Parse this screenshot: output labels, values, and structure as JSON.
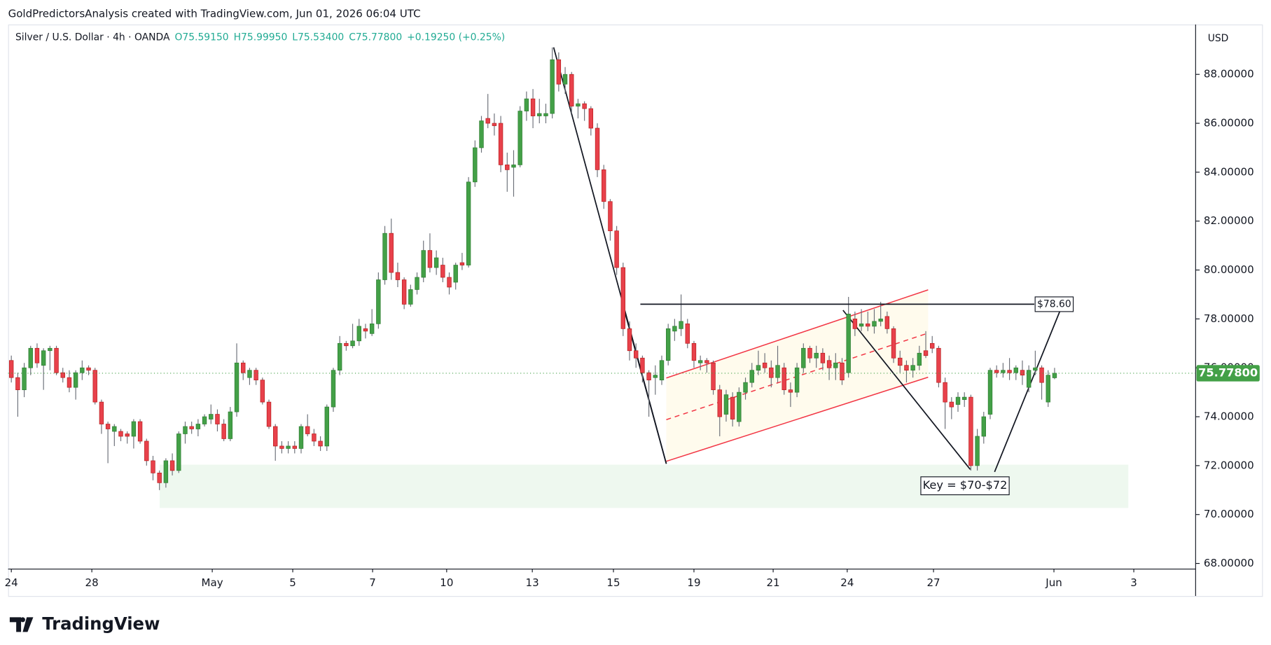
{
  "chart_data": {
    "type": "candlestick",
    "attribution": "GoldPredictorsAnalysis created with TradingView.com, Jun 01, 2026 06:04 UTC",
    "legend_text": [
      "Silver / U.S. Dollar · 4h · OANDA",
      "O75.59150",
      "H75.99950",
      "L75.53400",
      "C75.77800",
      "+0.19250 (+0.25%)"
    ],
    "currency": "USD",
    "brand": "TradingView",
    "up_color": "#43a047",
    "down_color": "#e8414b",
    "last_price_label": "75.77800",
    "ylim": [
      67.77,
      90.04
    ],
    "xlim": [
      -0.5,
      183.9
    ],
    "yticks": [
      {
        "value": 68,
        "label": "68.00000"
      },
      {
        "value": 70,
        "label": "70.00000"
      },
      {
        "value": 72,
        "label": "72.00000"
      },
      {
        "value": 74,
        "label": "74.00000"
      },
      {
        "value": 76,
        "label": "76.00000"
      },
      {
        "value": 78,
        "label": "78.00000"
      },
      {
        "value": 80,
        "label": "80.00000"
      },
      {
        "value": 82,
        "label": "82.00000"
      },
      {
        "value": 84,
        "label": "84.00000"
      },
      {
        "value": 86,
        "label": "86.00000"
      },
      {
        "value": 88,
        "label": "88.00000"
      }
    ],
    "xticks": [
      {
        "value": 0,
        "label": "24"
      },
      {
        "value": 12.5,
        "label": "28"
      },
      {
        "value": 31.2,
        "label": "May"
      },
      {
        "value": 43.7,
        "label": "5"
      },
      {
        "value": 56.1,
        "label": "7"
      },
      {
        "value": 67.6,
        "label": "10"
      },
      {
        "value": 80.9,
        "label": "13"
      },
      {
        "value": 93.5,
        "label": "15"
      },
      {
        "value": 106,
        "label": "19"
      },
      {
        "value": 118.3,
        "label": "21"
      },
      {
        "value": 129.8,
        "label": "24"
      },
      {
        "value": 143.2,
        "label": "27"
      },
      {
        "value": 161.9,
        "label": "Jun"
      },
      {
        "value": 174.3,
        "label": "3"
      }
    ],
    "resistance": {
      "value": 78.6,
      "label": "$78.60"
    },
    "zone": {
      "range": [
        70.27,
        72.04
      ],
      "label": "Key = $70-$72"
    },
    "ohlc": [
      [
        76.3,
        76.5,
        75.4,
        75.6
      ],
      [
        75.6,
        75.8,
        74.0,
        75.1
      ],
      [
        75.1,
        76.2,
        74.8,
        76.0
      ],
      [
        76.0,
        76.9,
        75.7,
        76.8
      ],
      [
        76.8,
        77.0,
        76.0,
        76.2
      ],
      [
        76.1,
        76.8,
        75.1,
        76.7
      ],
      [
        76.7,
        76.9,
        75.9,
        76.8
      ],
      [
        76.8,
        76.9,
        75.7,
        75.8
      ],
      [
        75.8,
        76.0,
        75.4,
        75.6
      ],
      [
        75.6,
        75.9,
        75.0,
        75.2
      ],
      [
        75.2,
        75.9,
        74.7,
        75.8
      ],
      [
        75.8,
        76.3,
        75.5,
        76.0
      ],
      [
        76.0,
        76.1,
        75.7,
        75.9
      ],
      [
        75.9,
        76.0,
        74.5,
        74.6
      ],
      [
        74.6,
        74.7,
        73.3,
        73.7
      ],
      [
        73.7,
        73.8,
        72.1,
        73.5
      ],
      [
        73.4,
        73.7,
        72.8,
        73.6
      ],
      [
        73.4,
        73.5,
        73.0,
        73.2
      ],
      [
        73.3,
        73.4,
        72.9,
        73.2
      ],
      [
        73.2,
        73.9,
        72.7,
        73.8
      ],
      [
        73.8,
        73.9,
        72.9,
        73.0
      ],
      [
        73.0,
        73.1,
        72.0,
        72.2
      ],
      [
        72.2,
        72.4,
        71.4,
        71.7
      ],
      [
        71.7,
        71.8,
        71.0,
        71.3
      ],
      [
        71.3,
        72.3,
        71.1,
        72.2
      ],
      [
        72.2,
        72.5,
        71.6,
        71.8
      ],
      [
        71.8,
        73.4,
        71.7,
        73.3
      ],
      [
        73.3,
        73.8,
        72.9,
        73.6
      ],
      [
        73.6,
        73.8,
        73.3,
        73.5
      ],
      [
        73.5,
        73.9,
        73.2,
        73.7
      ],
      [
        73.7,
        74.1,
        73.6,
        74.0
      ],
      [
        73.9,
        74.5,
        73.7,
        74.1
      ],
      [
        74.1,
        74.3,
        73.4,
        73.7
      ],
      [
        73.7,
        73.9,
        73.0,
        73.1
      ],
      [
        73.1,
        74.4,
        73.0,
        74.2
      ],
      [
        74.2,
        77.0,
        74.0,
        76.2
      ],
      [
        76.2,
        76.3,
        75.5,
        75.8
      ],
      [
        75.6,
        76.0,
        75.3,
        75.9
      ],
      [
        75.9,
        76.0,
        75.3,
        75.5
      ],
      [
        75.5,
        75.6,
        74.5,
        74.6
      ],
      [
        74.6,
        74.7,
        73.5,
        73.6
      ],
      [
        73.6,
        73.7,
        72.2,
        72.8
      ],
      [
        72.8,
        73.0,
        72.5,
        72.7
      ],
      [
        72.7,
        73.0,
        72.5,
        72.8
      ],
      [
        72.8,
        73.0,
        72.5,
        72.7
      ],
      [
        72.7,
        73.7,
        72.5,
        73.6
      ],
      [
        73.6,
        74.1,
        73.2,
        73.3
      ],
      [
        73.3,
        73.5,
        72.8,
        73.0
      ],
      [
        73.0,
        73.2,
        72.6,
        72.8
      ],
      [
        72.8,
        74.5,
        72.6,
        74.4
      ],
      [
        74.4,
        76.0,
        74.2,
        75.9
      ],
      [
        75.9,
        77.3,
        75.7,
        77.0
      ],
      [
        77.0,
        77.1,
        76.7,
        76.9
      ],
      [
        76.9,
        77.8,
        76.8,
        77.1
      ],
      [
        77.1,
        78.0,
        76.9,
        77.7
      ],
      [
        77.6,
        77.8,
        77.2,
        77.5
      ],
      [
        77.4,
        78.4,
        77.3,
        77.8
      ],
      [
        77.8,
        79.9,
        77.6,
        79.6
      ],
      [
        79.6,
        81.8,
        79.4,
        81.5
      ],
      [
        81.5,
        82.1,
        79.6,
        79.9
      ],
      [
        79.9,
        80.3,
        79.3,
        79.6
      ],
      [
        79.6,
        79.7,
        78.4,
        78.6
      ],
      [
        78.6,
        79.4,
        78.5,
        79.2
      ],
      [
        79.2,
        79.9,
        79.0,
        79.7
      ],
      [
        79.7,
        81.2,
        79.5,
        80.8
      ],
      [
        80.8,
        81.5,
        79.9,
        80.1
      ],
      [
        80.1,
        80.8,
        79.8,
        80.5
      ],
      [
        80.2,
        80.5,
        79.5,
        79.7
      ],
      [
        79.7,
        79.9,
        79.0,
        79.3
      ],
      [
        79.5,
        80.3,
        79.2,
        80.2
      ],
      [
        80.3,
        80.7,
        80.0,
        80.2
      ],
      [
        80.2,
        83.8,
        80.1,
        83.6
      ],
      [
        83.6,
        85.3,
        83.4,
        85.0
      ],
      [
        85.0,
        86.3,
        84.8,
        86.1
      ],
      [
        86.2,
        87.2,
        85.8,
        86.0
      ],
      [
        86.0,
        86.4,
        85.5,
        85.9
      ],
      [
        86.0,
        86.3,
        84.0,
        84.3
      ],
      [
        84.3,
        84.8,
        83.2,
        84.1
      ],
      [
        84.2,
        84.9,
        83.0,
        84.3
      ],
      [
        84.3,
        86.7,
        84.2,
        86.5
      ],
      [
        86.5,
        87.3,
        86.1,
        87.0
      ],
      [
        87.0,
        87.4,
        85.8,
        86.3
      ],
      [
        86.3,
        87.0,
        86.0,
        86.4
      ],
      [
        86.3,
        86.8,
        86.0,
        86.4
      ],
      [
        86.4,
        89.1,
        86.2,
        88.6
      ],
      [
        88.6,
        88.9,
        87.3,
        87.6
      ],
      [
        87.6,
        88.3,
        87.2,
        88.0
      ],
      [
        88.0,
        88.1,
        86.4,
        86.7
      ],
      [
        86.7,
        87.0,
        86.2,
        86.8
      ],
      [
        86.8,
        86.9,
        86.1,
        86.6
      ],
      [
        86.6,
        86.7,
        85.5,
        85.8
      ],
      [
        85.8,
        86.0,
        83.8,
        84.1
      ],
      [
        84.1,
        84.3,
        82.5,
        82.8
      ],
      [
        82.8,
        82.9,
        81.2,
        81.6
      ],
      [
        81.6,
        81.8,
        79.8,
        80.1
      ],
      [
        80.1,
        80.3,
        77.3,
        77.6
      ],
      [
        77.6,
        77.9,
        76.3,
        76.7
      ],
      [
        76.7,
        77.0,
        76.0,
        76.4
      ],
      [
        76.4,
        76.5,
        75.4,
        75.8
      ],
      [
        75.8,
        75.9,
        74.0,
        75.5
      ],
      [
        75.6,
        76.1,
        74.9,
        75.7
      ],
      [
        75.5,
        76.5,
        75.3,
        76.3
      ],
      [
        76.3,
        77.8,
        76.1,
        77.6
      ],
      [
        77.5,
        78.0,
        77.1,
        77.7
      ],
      [
        77.6,
        79.0,
        77.3,
        77.9
      ],
      [
        77.8,
        78.0,
        76.8,
        77.0
      ],
      [
        77.0,
        77.1,
        76.0,
        76.3
      ],
      [
        76.2,
        76.5,
        75.9,
        76.3
      ],
      [
        76.3,
        76.4,
        75.8,
        76.2
      ],
      [
        76.2,
        76.3,
        74.9,
        75.1
      ],
      [
        75.1,
        75.3,
        73.2,
        74.0
      ],
      [
        74.1,
        75.1,
        73.8,
        74.9
      ],
      [
        74.8,
        75.0,
        73.6,
        73.9
      ],
      [
        73.8,
        75.2,
        73.6,
        75.0
      ],
      [
        75.0,
        75.6,
        74.7,
        75.4
      ],
      [
        75.4,
        76.2,
        75.2,
        75.9
      ],
      [
        75.9,
        76.7,
        75.7,
        76.1
      ],
      [
        76.2,
        76.6,
        75.8,
        76.0
      ],
      [
        76.0,
        76.3,
        75.2,
        75.6
      ],
      [
        75.6,
        76.9,
        75.4,
        76.1
      ],
      [
        76.0,
        76.2,
        74.9,
        75.1
      ],
      [
        75.1,
        75.4,
        74.4,
        75.0
      ],
      [
        75.0,
        76.2,
        74.8,
        76.0
      ],
      [
        76.0,
        77.0,
        75.8,
        76.8
      ],
      [
        76.8,
        76.9,
        76.2,
        76.4
      ],
      [
        76.4,
        76.9,
        76.0,
        76.6
      ],
      [
        76.6,
        76.8,
        75.9,
        76.2
      ],
      [
        76.3,
        76.5,
        75.5,
        76.0
      ],
      [
        76.0,
        76.6,
        75.5,
        76.2
      ],
      [
        76.2,
        76.4,
        75.3,
        75.5
      ],
      [
        75.8,
        78.9,
        75.6,
        78.2
      ],
      [
        78.0,
        78.3,
        77.3,
        77.6
      ],
      [
        77.7,
        78.4,
        77.5,
        77.8
      ],
      [
        77.8,
        78.3,
        77.5,
        77.7
      ],
      [
        77.7,
        78.4,
        77.4,
        77.9
      ],
      [
        77.9,
        78.7,
        77.7,
        78.0
      ],
      [
        78.1,
        78.3,
        77.4,
        77.6
      ],
      [
        77.6,
        77.7,
        76.2,
        76.4
      ],
      [
        76.4,
        76.7,
        75.8,
        76.1
      ],
      [
        76.1,
        76.3,
        75.4,
        75.9
      ],
      [
        75.9,
        76.4,
        75.6,
        76.1
      ],
      [
        76.1,
        76.9,
        75.9,
        76.6
      ],
      [
        76.7,
        77.5,
        76.4,
        76.5
      ],
      [
        77.0,
        77.3,
        76.6,
        76.8
      ],
      [
        76.8,
        76.9,
        75.2,
        75.4
      ],
      [
        75.4,
        75.6,
        73.5,
        74.6
      ],
      [
        74.6,
        74.8,
        73.9,
        74.4
      ],
      [
        74.5,
        75.0,
        74.2,
        74.8
      ],
      [
        74.7,
        75.0,
        74.4,
        74.8
      ],
      [
        74.8,
        74.9,
        71.8,
        72.0
      ],
      [
        72.0,
        73.5,
        71.8,
        73.2
      ],
      [
        73.2,
        74.2,
        72.9,
        74.0
      ],
      [
        74.1,
        76.0,
        73.9,
        75.9
      ],
      [
        75.9,
        76.1,
        75.6,
        75.8
      ],
      [
        75.8,
        76.2,
        75.6,
        75.9
      ],
      [
        75.9,
        76.4,
        75.5,
        75.8
      ],
      [
        75.8,
        76.1,
        75.5,
        76.0
      ],
      [
        75.9,
        76.3,
        75.3,
        75.7
      ],
      [
        75.2,
        76.1,
        75.0,
        75.9
      ],
      [
        75.9,
        76.7,
        75.7,
        76.0
      ],
      [
        76.0,
        76.1,
        74.7,
        75.4
      ],
      [
        74.6,
        75.9,
        74.4,
        75.7
      ],
      [
        75.5915,
        75.9995,
        75.534,
        75.778
      ]
    ]
  }
}
